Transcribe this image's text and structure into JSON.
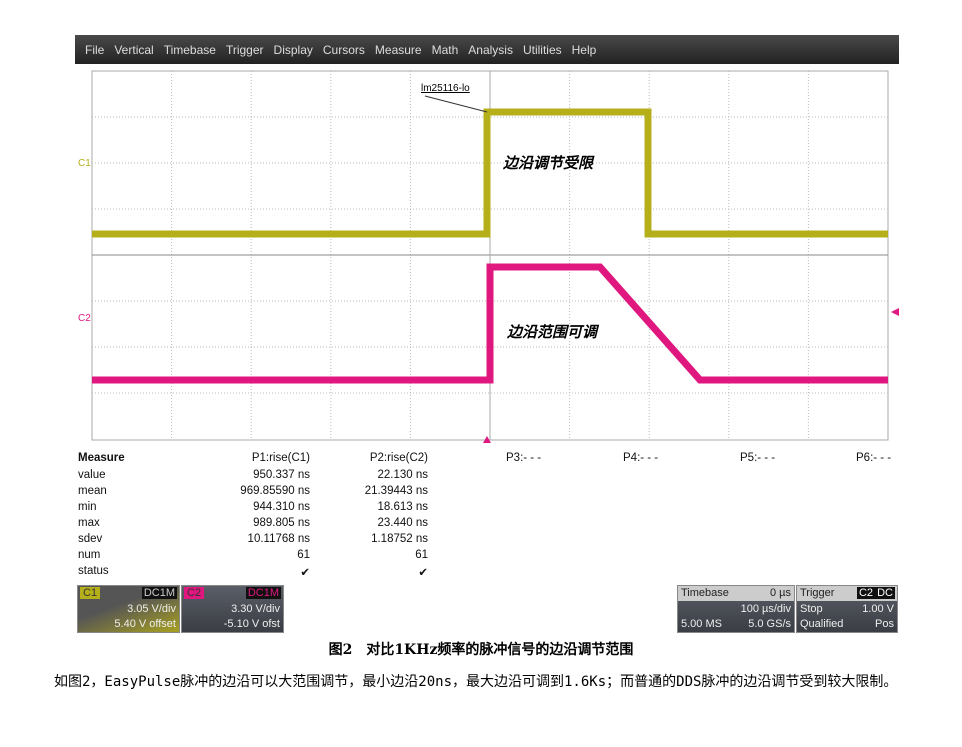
{
  "menu": [
    "File",
    "Vertical",
    "Timebase",
    "Trigger",
    "Display",
    "Cursors",
    "Measure",
    "Math",
    "Analysis",
    "Utilities",
    "Help"
  ],
  "scope": {
    "trace_label": "lm25116-lo",
    "annotation_top": "边沿调节受限",
    "annotation_bottom": "边沿范围可调",
    "c1_label": "C1",
    "c2_label": "C2",
    "colors": {
      "c1": "#b5b019",
      "c2": "#e0177f"
    }
  },
  "measure": {
    "title": "Measure",
    "params": [
      "P1:rise(C1)",
      "P2:rise(C2)",
      "P3:- - -",
      "P4:- - -",
      "P5:- - -",
      "P6:- - -"
    ],
    "rows": [
      {
        "label": "value",
        "p1": "950.337 ns",
        "p2": "22.130 ns"
      },
      {
        "label": "mean",
        "p1": "969.85590 ns",
        "p2": "21.39443 ns"
      },
      {
        "label": "min",
        "p1": "944.310 ns",
        "p2": "18.613 ns"
      },
      {
        "label": "max",
        "p1": "989.805 ns",
        "p2": "23.440 ns"
      },
      {
        "label": "sdev",
        "p1": "10.11768 ns",
        "p2": "1.18752 ns"
      },
      {
        "label": "num",
        "p1": "61",
        "p2": "61"
      },
      {
        "label": "status",
        "p1": "✔",
        "p2": "✔"
      }
    ]
  },
  "c1": {
    "name": "C1",
    "coupling": "DC1M",
    "vdiv": "3.05 V/div",
    "offset": "5.40 V offset"
  },
  "c2": {
    "name": "C2",
    "coupling": "DC1M",
    "vdiv": "3.30 V/div",
    "offset": "-5.10 V ofst"
  },
  "timebase": {
    "title": "Timebase",
    "delay": "0 µs",
    "tdiv": "100 µs/div",
    "samples": "5.00 MS",
    "rate": "5.0 GS/s"
  },
  "trigger": {
    "title": "Trigger",
    "source": "C2",
    "coupling": "DC",
    "mode": "Stop",
    "level": "1.00 V",
    "type": "Qualified",
    "slope": "Pos"
  },
  "caption": "图2　对比1KHz频率的脉冲信号的边沿调节范围",
  "paragraph": "如图2，EasyPulse脉冲的边沿可以大范围调节，最小边沿20ns，最大边沿可调到1.6Ks；而普通的DDS脉冲的边沿调节受到较大限制。"
}
